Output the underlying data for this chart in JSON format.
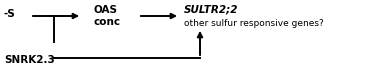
{
  "background_color": "#ffffff",
  "text_minus_s": "-S",
  "text_oas_line1": "OAS",
  "text_oas_line2": "conc",
  "text_sultr": "SULTR2;2",
  "text_other": "other sulfur responsive genes?",
  "text_snrk": "SNRK2.3",
  "fig_width": 3.77,
  "fig_height": 0.72,
  "dpi": 100
}
